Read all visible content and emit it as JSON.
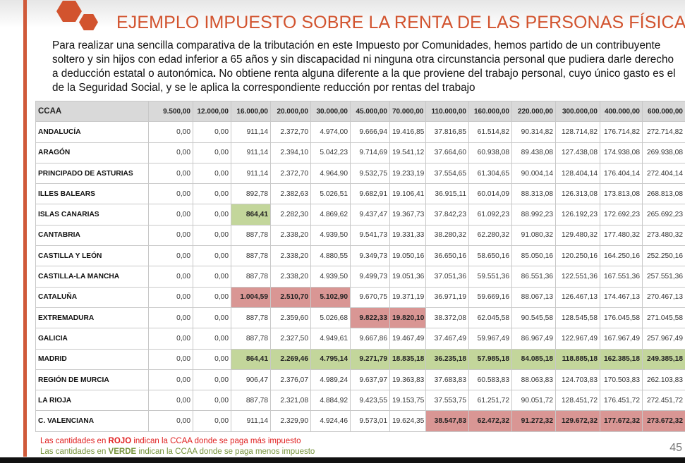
{
  "title": "EJEMPLO IMPUESTO SOBRE LA RENTA DE LAS PERSONAS FÍSICAS",
  "intro_normal_1": "Para realizar una sencilla comparativa de la tributación en este Impuesto por Comunidades, hemos partido de un contribuyente soltero y sin hijos con edad inferior a 65 años y sin discapacidad ni ninguna otra circunstancia personal que pudiera darle derecho a deducción estatal o autonómica",
  "intro_bold": ".",
  "intro_normal_2": " No obtiene renta alguna diferente a la que proviene del trabajo personal, cuyo único gasto es el de la Seguridad Social, y se le aplica la correspondiente reducción por rentas del trabajo",
  "table": {
    "headers": [
      "CCAA",
      "9.500,00",
      "12.000,00",
      "16.000,00",
      "20.000,00",
      "30.000,00",
      "45.000,00",
      "70.000,00",
      "110.000,00",
      "160.000,00",
      "220.000,00",
      "300.000,00",
      "400.000,00",
      "600.000,00"
    ],
    "rows": [
      {
        "name": "ANDALUCÍA",
        "values": [
          "0,00",
          "0,00",
          "911,14",
          "2.372,70",
          "4.974,00",
          "9.666,94",
          "19.416,85",
          "37.816,85",
          "61.514,82",
          "90.314,82",
          "128.714,82",
          "176.714,82",
          "272.714,82"
        ],
        "hl": [
          "",
          "",
          "",
          "",
          "",
          "",
          "",
          "",
          "",
          "",
          "",
          "",
          ""
        ]
      },
      {
        "name": "ARAGÓN",
        "values": [
          "0,00",
          "0,00",
          "911,14",
          "2.394,10",
          "5.042,23",
          "9.714,69",
          "19.541,12",
          "37.664,60",
          "60.938,08",
          "89.438,08",
          "127.438,08",
          "174.938,08",
          "269.938,08"
        ],
        "hl": [
          "",
          "",
          "",
          "",
          "",
          "",
          "",
          "",
          "",
          "",
          "",
          "",
          ""
        ]
      },
      {
        "name": "PRINCIPADO DE ASTURIAS",
        "values": [
          "0,00",
          "0,00",
          "911,14",
          "2.372,70",
          "4.964,90",
          "9.532,75",
          "19.233,19",
          "37.554,65",
          "61.304,65",
          "90.004,14",
          "128.404,14",
          "176.404,14",
          "272.404,14"
        ],
        "hl": [
          "",
          "",
          "",
          "",
          "",
          "",
          "",
          "",
          "",
          "",
          "",
          "",
          ""
        ]
      },
      {
        "name": "ILLES BALEARS",
        "values": [
          "0,00",
          "0,00",
          "892,78",
          "2.382,63",
          "5.026,51",
          "9.682,91",
          "19.106,41",
          "36.915,11",
          "60.014,09",
          "88.313,08",
          "126.313,08",
          "173.813,08",
          "268.813,08"
        ],
        "hl": [
          "",
          "",
          "",
          "",
          "",
          "",
          "",
          "",
          "",
          "",
          "",
          "",
          ""
        ]
      },
      {
        "name": "ISLAS CANARIAS",
        "values": [
          "0,00",
          "0,00",
          "864,41",
          "2.282,30",
          "4.869,62",
          "9.437,47",
          "19.367,73",
          "37.842,23",
          "61.092,23",
          "88.992,23",
          "126.192,23",
          "172.692,23",
          "265.692,23"
        ],
        "hl": [
          "",
          "",
          "g",
          "",
          "",
          "",
          "",
          "",
          "",
          "",
          "",
          "",
          ""
        ]
      },
      {
        "name": "CANTABRIA",
        "values": [
          "0,00",
          "0,00",
          "887,78",
          "2.338,20",
          "4.939,50",
          "9.541,73",
          "19.331,33",
          "38.280,32",
          "62.280,32",
          "91.080,32",
          "129.480,32",
          "177.480,32",
          "273.480,32"
        ],
        "hl": [
          "",
          "",
          "",
          "",
          "",
          "",
          "",
          "",
          "",
          "",
          "",
          "",
          ""
        ]
      },
      {
        "name": "CASTILLA Y LEÓN",
        "values": [
          "0,00",
          "0,00",
          "887,78",
          "2.338,20",
          "4.880,55",
          "9.349,73",
          "19.050,16",
          "36.650,16",
          "58.650,16",
          "85.050,16",
          "120.250,16",
          "164.250,16",
          "252.250,16"
        ],
        "hl": [
          "",
          "",
          "",
          "",
          "",
          "",
          "",
          "",
          "",
          "",
          "",
          "",
          ""
        ]
      },
      {
        "name": "CASTILLA-LA MANCHA",
        "values": [
          "0,00",
          "0,00",
          "887,78",
          "2.338,20",
          "4.939,50",
          "9.499,73",
          "19.051,36",
          "37.051,36",
          "59.551,36",
          "86.551,36",
          "122.551,36",
          "167.551,36",
          "257.551,36"
        ],
        "hl": [
          "",
          "",
          "",
          "",
          "",
          "",
          "",
          "",
          "",
          "",
          "",
          "",
          ""
        ]
      },
      {
        "name": "CATALUÑA",
        "values": [
          "0,00",
          "0,00",
          "1.004,59",
          "2.510,70",
          "5.102,90",
          "9.670,75",
          "19.371,19",
          "36.971,19",
          "59.669,16",
          "88.067,13",
          "126.467,13",
          "174.467,13",
          "270.467,13"
        ],
        "hl": [
          "",
          "",
          "r",
          "r",
          "r",
          "",
          "",
          "",
          "",
          "",
          "",
          "",
          ""
        ]
      },
      {
        "name": "EXTREMADURA",
        "values": [
          "0,00",
          "0,00",
          "887,78",
          "2.359,60",
          "5.026,68",
          "9.822,33",
          "19.820,10",
          "38.372,08",
          "62.045,58",
          "90.545,58",
          "128.545,58",
          "176.045,58",
          "271.045,58"
        ],
        "hl": [
          "",
          "",
          "",
          "",
          "",
          "r",
          "r",
          "",
          "",
          "",
          "",
          "",
          ""
        ]
      },
      {
        "name": "GALICIA",
        "values": [
          "0,00",
          "0,00",
          "887,78",
          "2.327,50",
          "4.949,61",
          "9.667,86",
          "19.467,49",
          "37.467,49",
          "59.967,49",
          "86.967,49",
          "122.967,49",
          "167.967,49",
          "257.967,49"
        ],
        "hl": [
          "",
          "",
          "",
          "",
          "",
          "",
          "",
          "",
          "",
          "",
          "",
          "",
          ""
        ]
      },
      {
        "name": "MADRID",
        "values": [
          "0,00",
          "0,00",
          "864,41",
          "2.269,46",
          "4.795,14",
          "9.271,79",
          "18.835,18",
          "36.235,18",
          "57.985,18",
          "84.085,18",
          "118.885,18",
          "162.385,18",
          "249.385,18"
        ],
        "hl": [
          "",
          "",
          "g",
          "g",
          "g",
          "g",
          "g",
          "g",
          "g",
          "g",
          "g",
          "g",
          "g"
        ]
      },
      {
        "name": "REGIÓN DE MURCIA",
        "values": [
          "0,00",
          "0,00",
          "906,47",
          "2.376,07",
          "4.989,24",
          "9.637,97",
          "19.363,83",
          "37.683,83",
          "60.583,83",
          "88.063,83",
          "124.703,83",
          "170.503,83",
          "262.103,83"
        ],
        "hl": [
          "",
          "",
          "",
          "",
          "",
          "",
          "",
          "",
          "",
          "",
          "",
          "",
          ""
        ]
      },
      {
        "name": "LA RIOJA",
        "values": [
          "0,00",
          "0,00",
          "887,78",
          "2.321,08",
          "4.884,92",
          "9.423,55",
          "19.153,75",
          "37.553,75",
          "61.251,72",
          "90.051,72",
          "128.451,72",
          "176.451,72",
          "272.451,72"
        ],
        "hl": [
          "",
          "",
          "",
          "",
          "",
          "",
          "",
          "",
          "",
          "",
          "",
          "",
          ""
        ]
      },
      {
        "name": "C. VALENCIANA",
        "values": [
          "0,00",
          "0,00",
          "911,14",
          "2.329,90",
          "4.924,46",
          "9.573,01",
          "19.624,35",
          "38.547,83",
          "62.472,32",
          "91.272,32",
          "129.672,32",
          "177.672,32",
          "273.672,32"
        ],
        "hl": [
          "",
          "",
          "",
          "",
          "",
          "",
          "",
          "r",
          "r",
          "r",
          "r",
          "r",
          "r"
        ]
      }
    ]
  },
  "notes": {
    "red_pre": "Las cantidades en ",
    "red_word": "ROJO",
    "red_post": " indican la CCAA donde se paga más impuesto",
    "green_pre": "Las cantidades en ",
    "green_word": "VERDE",
    "green_post": " indican la CCAA donde se paga menos impuesto"
  },
  "page_number": "45",
  "colors": {
    "accent": "#d2532e",
    "red_highlight": "#d99694",
    "green_highlight": "#c3d69b"
  }
}
